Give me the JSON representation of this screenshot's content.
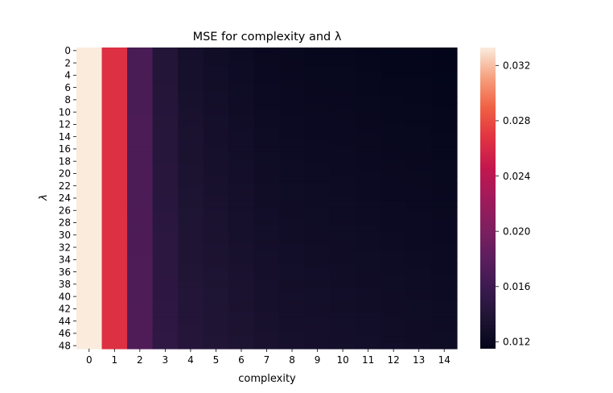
{
  "chart_data": {
    "type": "heatmap",
    "title": "MSE for complexity and λ",
    "xlabel": "complexity",
    "ylabel": "λ",
    "x": [
      0,
      1,
      2,
      3,
      4,
      5,
      6,
      7,
      8,
      9,
      10,
      11,
      12,
      13,
      14
    ],
    "y_rows": 49,
    "y_tick_labels": [
      "0",
      "2",
      "4",
      "6",
      "8",
      "10",
      "12",
      "14",
      "16",
      "18",
      "20",
      "22",
      "24",
      "26",
      "28",
      "30",
      "32",
      "34",
      "36",
      "38",
      "40",
      "42",
      "44",
      "46",
      "48"
    ],
    "column_values_top": [
      0.0333,
      0.0265,
      0.0168,
      0.014,
      0.013,
      0.0126,
      0.0123,
      0.012,
      0.0119,
      0.0118,
      0.0118,
      0.0117,
      0.0116,
      0.0116,
      0.0115
    ],
    "column_values_bottom": [
      0.0333,
      0.0265,
      0.0172,
      0.015,
      0.0142,
      0.0139,
      0.0136,
      0.0133,
      0.0131,
      0.013,
      0.0129,
      0.0128,
      0.0127,
      0.0126,
      0.0125
    ],
    "colorbar": {
      "min": 0.0115,
      "max": 0.0333,
      "ticks": [
        "0.012",
        "0.016",
        "0.020",
        "0.024",
        "0.028",
        "0.032"
      ],
      "tick_values": [
        0.012,
        0.016,
        0.02,
        0.024,
        0.028,
        0.032
      ]
    },
    "colormap": "rocket",
    "grid": false
  }
}
